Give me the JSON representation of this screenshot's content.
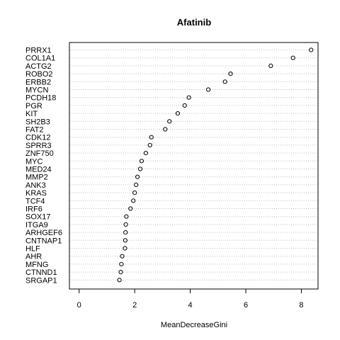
{
  "chart_data": {
    "type": "scatter",
    "subtype": "dotchart",
    "title": "Afatinib",
    "xlabel": "MeanDecreaseGini",
    "ylabel": "",
    "xlim": [
      -0.35,
      8.6
    ],
    "xticks": [
      0,
      2,
      4,
      6,
      8
    ],
    "grid": "dotted horizontal guide lines",
    "legend": "none",
    "marker": "open circle",
    "categories": [
      "PRRX1",
      "COL1A1",
      "ACTG2",
      "ROBO2",
      "ERBB2",
      "MYCN",
      "PCDH18",
      "PGR",
      "KIT",
      "SH2B3",
      "FAT2",
      "CDK12",
      "SPRR3",
      "ZNF750",
      "MYC",
      "MED24",
      "MMP2",
      "ANK3",
      "KRAS",
      "TCF4",
      "IRF6",
      "SOX17",
      "ITGA9",
      "ARHGEF6",
      "CNTNAP1",
      "HLF",
      "AHR",
      "MFNG",
      "CTNND1",
      "SRGAP1"
    ],
    "values": [
      8.35,
      7.7,
      6.9,
      5.45,
      5.25,
      4.65,
      3.95,
      3.8,
      3.55,
      3.25,
      3.1,
      2.6,
      2.55,
      2.4,
      2.25,
      2.2,
      2.1,
      2.05,
      2.0,
      1.95,
      1.85,
      1.7,
      1.68,
      1.67,
      1.66,
      1.65,
      1.55,
      1.52,
      1.5,
      1.45
    ]
  },
  "colors": {
    "background": "#ffffff",
    "foreground": "#000000",
    "guide_line": "#bebebe"
  }
}
